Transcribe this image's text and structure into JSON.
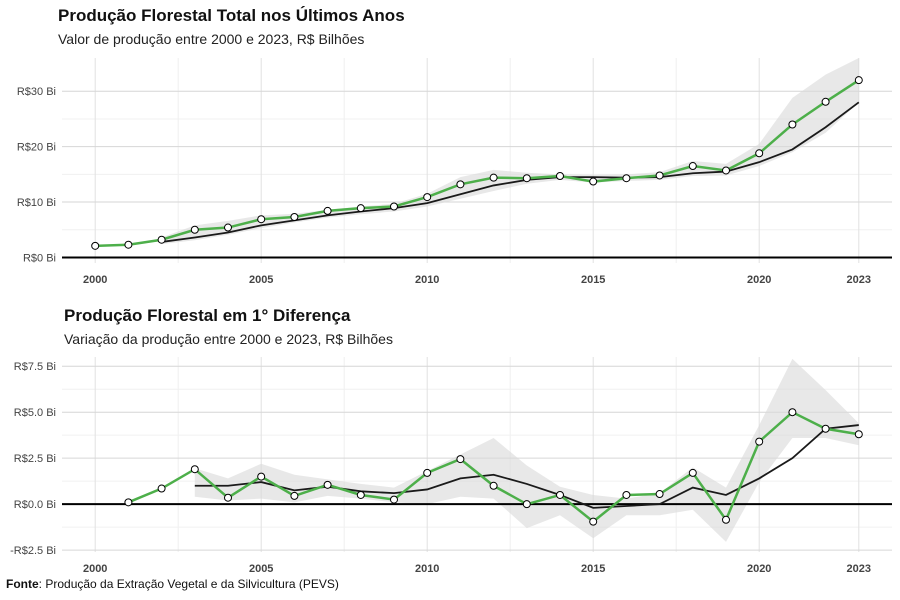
{
  "chart_data": [
    {
      "type": "line",
      "title": "Produção Florestal Total nos Últimos Anos",
      "subtitle": "Valor de produção entre 2000 e 2023, R$ Bilhões",
      "x": [
        2000,
        2001,
        2002,
        2003,
        2004,
        2005,
        2006,
        2007,
        2008,
        2009,
        2010,
        2011,
        2012,
        2013,
        2014,
        2015,
        2016,
        2017,
        2018,
        2019,
        2020,
        2021,
        2022,
        2023
      ],
      "x_ticks": [
        2000,
        2005,
        2010,
        2015,
        2020,
        2023
      ],
      "x_tick_labels": [
        "2000",
        "2005",
        "2010",
        "2015",
        "2020",
        "2023"
      ],
      "y_ticks": [
        0,
        10,
        20,
        30
      ],
      "y_tick_labels": [
        "R$0 Bi",
        "R$10 Bi",
        "R$20 Bi",
        "R$30 Bi"
      ],
      "ylim": [
        -1,
        36
      ],
      "xlim": [
        1999.0,
        2024.0
      ],
      "series": [
        {
          "role": "observed",
          "color": "#4daf4a",
          "values": [
            2.1,
            2.3,
            3.2,
            5.0,
            5.4,
            6.9,
            7.3,
            8.4,
            8.9,
            9.2,
            10.9,
            13.2,
            14.4,
            14.3,
            14.7,
            13.7,
            14.3,
            14.8,
            16.5,
            15.7,
            18.8,
            24.0,
            28.1,
            32.0
          ]
        },
        {
          "role": "smoothed",
          "color": "#1a1a1a",
          "values": [
            null,
            null,
            2.8,
            3.6,
            4.5,
            5.8,
            6.7,
            7.6,
            8.3,
            8.9,
            9.8,
            11.4,
            13.0,
            14.0,
            14.5,
            14.5,
            14.4,
            14.5,
            15.2,
            15.5,
            17.2,
            19.5,
            23.5,
            28.0
          ]
        },
        {
          "role": "band_upper",
          "values": [
            null,
            null,
            3.6,
            5.8,
            6.6,
            7.6,
            7.9,
            8.6,
            9.2,
            9.7,
            11.5,
            14.5,
            15.8,
            15.3,
            15.0,
            14.9,
            15.0,
            15.4,
            17.4,
            16.9,
            20.5,
            28.8,
            33.0,
            36.0
          ]
        },
        {
          "role": "band_lower",
          "values": [
            null,
            null,
            2.4,
            3.1,
            4.1,
            5.3,
            6.3,
            7.2,
            7.8,
            8.3,
            9.2,
            10.6,
            12.0,
            13.3,
            14.0,
            13.5,
            13.8,
            14.0,
            14.7,
            14.8,
            16.5,
            19.0,
            22.5,
            28.0
          ]
        }
      ],
      "grid": true
    },
    {
      "type": "line",
      "title": "Produção Florestal em 1° Diferença",
      "subtitle": "Variação da produção entre 2000 e 2023, R$ Bilhões",
      "x": [
        2001,
        2002,
        2003,
        2004,
        2005,
        2006,
        2007,
        2008,
        2009,
        2010,
        2011,
        2012,
        2013,
        2014,
        2015,
        2016,
        2017,
        2018,
        2019,
        2020,
        2021,
        2022,
        2023
      ],
      "x_ticks": [
        2000,
        2005,
        2010,
        2015,
        2020,
        2023
      ],
      "x_tick_labels": [
        "2000",
        "2005",
        "2010",
        "2015",
        "2020",
        "2023"
      ],
      "y_ticks": [
        -2.5,
        0,
        2.5,
        5.0,
        7.5
      ],
      "y_tick_labels": [
        "-R$2.5 Bi",
        "R$0.0 Bi",
        "R$2.5 Bi",
        "R$5.0 Bi",
        "R$7.5 Bi"
      ],
      "ylim": [
        -2.6,
        8.0
      ],
      "xlim": [
        1999.0,
        2024.0
      ],
      "series": [
        {
          "role": "observed",
          "color": "#4daf4a",
          "values": [
            0.1,
            0.85,
            1.9,
            0.35,
            1.5,
            0.45,
            1.05,
            0.5,
            0.25,
            1.7,
            2.45,
            1.0,
            0.0,
            0.5,
            -0.95,
            0.5,
            0.55,
            1.7,
            -0.85,
            3.4,
            5.0,
            4.1,
            3.8
          ]
        },
        {
          "role": "smoothed",
          "color": "#1a1a1a",
          "values": [
            null,
            null,
            1.0,
            1.0,
            1.2,
            0.75,
            0.95,
            0.7,
            0.6,
            0.8,
            1.4,
            1.6,
            1.1,
            0.5,
            -0.2,
            -0.1,
            0.0,
            0.9,
            0.5,
            1.4,
            2.5,
            4.1,
            4.3
          ]
        },
        {
          "role": "band_upper",
          "values": [
            null,
            null,
            1.95,
            1.4,
            2.2,
            1.6,
            1.35,
            1.1,
            0.9,
            1.8,
            2.7,
            3.6,
            2.1,
            0.95,
            0.5,
            0.3,
            0.6,
            2.0,
            0.9,
            4.3,
            7.9,
            6.2,
            4.4
          ]
        },
        {
          "role": "band_lower",
          "values": [
            null,
            null,
            0.4,
            0.2,
            0.3,
            0.1,
            0.45,
            0.3,
            0.1,
            0.0,
            0.4,
            0.3,
            -1.3,
            -0.6,
            -1.85,
            -0.6,
            -0.6,
            -0.3,
            -2.05,
            1.2,
            3.6,
            3.6,
            3.2
          ]
        }
      ],
      "grid": true
    }
  ],
  "source": {
    "label": "Fonte",
    "text": ": Produção da Extração Vegetal e da Silvicultura (PEVS)"
  }
}
